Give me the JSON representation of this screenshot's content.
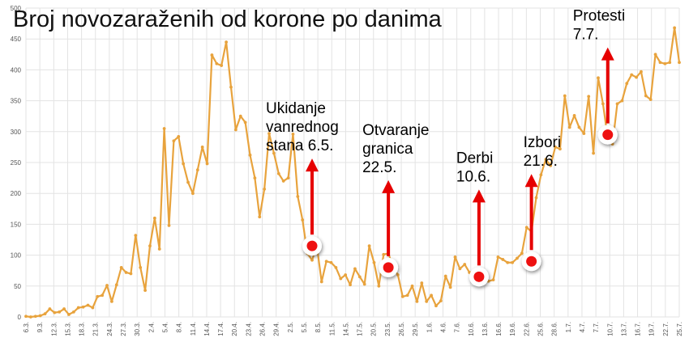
{
  "chart_data": {
    "type": "line",
    "title": "Broj novozaraženih od korone po danima",
    "xlabel": "",
    "ylabel": "",
    "ylim": [
      0,
      500
    ],
    "y_ticks": [
      0,
      50,
      100,
      150,
      200,
      250,
      300,
      350,
      400,
      450,
      500
    ],
    "grid": true,
    "x_tick_labels": [
      "6.3.",
      "9.3.",
      "12.3.",
      "15.3.",
      "18.3.",
      "21.3.",
      "24.3.",
      "27.3.",
      "30.3.",
      "2.4.",
      "5.4.",
      "8.4.",
      "11.4.",
      "14.4.",
      "17.4.",
      "20.4.",
      "23.4.",
      "26.4.",
      "29.4.",
      "2.5.",
      "5.5.",
      "8.5.",
      "11.5.",
      "14.5.",
      "17.5.",
      "20.5.",
      "23.5.",
      "26.5.",
      "29.5.",
      "1.6.",
      "4.6.",
      "7.6.",
      "10.6.",
      "13.6.",
      "16.6.",
      "19.6.",
      "22.6.",
      "25.6.",
      "28.6.",
      "1.7.",
      "4.7.",
      "7.7.",
      "10.7.",
      "13.7.",
      "16.7.",
      "19.7.",
      "22.7.",
      "25.7."
    ],
    "series": [
      {
        "color": "#e8a33d",
        "values": [
          1,
          0,
          1,
          2,
          5,
          13,
          7,
          8,
          13,
          4,
          8,
          15,
          16,
          19,
          15,
          33,
          35,
          51,
          25,
          52,
          80,
          72,
          70,
          132,
          80,
          43,
          115,
          160,
          110,
          305,
          148,
          285,
          292,
          248,
          218,
          200,
          238,
          275,
          248,
          424,
          410,
          407,
          445,
          372,
          303,
          325,
          315,
          262,
          225,
          162,
          207,
          297,
          265,
          232,
          220,
          225,
          296,
          195,
          157,
          103,
          92,
          115,
          57,
          90,
          88,
          80,
          62,
          68,
          52,
          78,
          65,
          53,
          115,
          88,
          50,
          101,
          103,
          80,
          68,
          33,
          35,
          50,
          25,
          55,
          25,
          35,
          18,
          26,
          66,
          48,
          97,
          78,
          85,
          72,
          59,
          77,
          58,
          58,
          60,
          97,
          93,
          88,
          88,
          95,
          103,
          145,
          138,
          193,
          230,
          255,
          245,
          275,
          272,
          358,
          307,
          326,
          307,
          297,
          357,
          265,
          387,
          345,
          290,
          280,
          345,
          350,
          378,
          392,
          388,
          397,
          358,
          352,
          425,
          412,
          410,
          412,
          468,
          412
        ]
      }
    ],
    "annotations": [
      {
        "lines": [
          "Ukidanje",
          "vanrednog",
          "stana 6.5."
        ],
        "x_index": 60,
        "y": 115
      },
      {
        "lines": [
          "Otvaranje",
          "granica",
          "22.5."
        ],
        "x_index": 76,
        "y": 80
      },
      {
        "lines": [
          "Derbi",
          "10.6."
        ],
        "x_index": 95,
        "y": 65
      },
      {
        "lines": [
          "Izbori",
          "21.6."
        ],
        "x_index": 106,
        "y": 90
      },
      {
        "lines": [
          "Protesti",
          "7.7."
        ],
        "x_index": 122,
        "y": 295
      }
    ],
    "arrow_color": "#e60000",
    "marker_color": "#ee1111"
  }
}
